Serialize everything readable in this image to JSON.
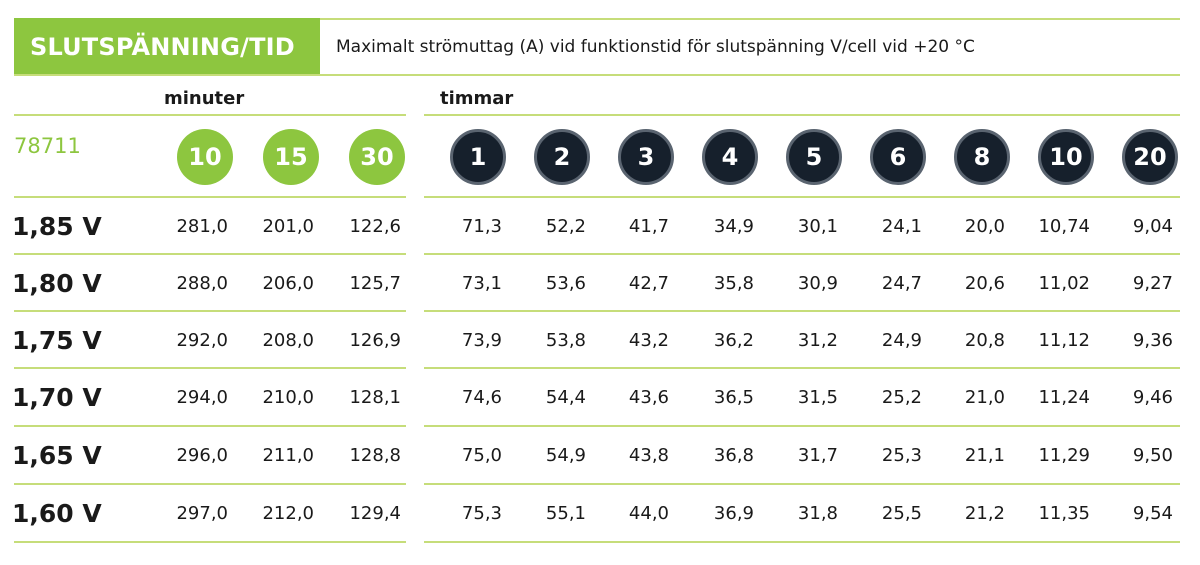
{
  "header": {
    "title": "SLUTSPÄNNING/TID",
    "description": "Maximalt strömuttag (A) vid funktionstid för slutspänning V/cell vid +20 °C"
  },
  "groups": {
    "minutes_label": "minuter",
    "hours_label": "timmar"
  },
  "model": "78711",
  "minute_columns": [
    "10",
    "15",
    "30"
  ],
  "hour_columns": [
    "1",
    "2",
    "3",
    "4",
    "5",
    "6",
    "8",
    "10",
    "20"
  ],
  "rows": [
    {
      "label": "1,85 V",
      "values": [
        "281,0",
        "201,0",
        "122,6",
        "71,3",
        "52,2",
        "41,7",
        "34,9",
        "30,1",
        "24,1",
        "20,0",
        "10,74",
        "9,04"
      ]
    },
    {
      "label": "1,80 V",
      "values": [
        "288,0",
        "206,0",
        "125,7",
        "73,1",
        "53,6",
        "42,7",
        "35,8",
        "30,9",
        "24,7",
        "20,6",
        "11,02",
        "9,27"
      ]
    },
    {
      "label": "1,75 V",
      "values": [
        "292,0",
        "208,0",
        "126,9",
        "73,9",
        "53,8",
        "43,2",
        "36,2",
        "31,2",
        "24,9",
        "20,8",
        "11,12",
        "9,36"
      ]
    },
    {
      "label": "1,70 V",
      "values": [
        "294,0",
        "210,0",
        "128,1",
        "74,6",
        "54,4",
        "43,6",
        "36,5",
        "31,5",
        "25,2",
        "21,0",
        "11,24",
        "9,46"
      ]
    },
    {
      "label": "1,65 V",
      "values": [
        "296,0",
        "211,0",
        "128,8",
        "75,0",
        "54,9",
        "43,8",
        "36,8",
        "31,7",
        "25,3",
        "21,1",
        "11,29",
        "9,50"
      ]
    },
    {
      "label": "1,60 V",
      "values": [
        "297,0",
        "212,0",
        "129,4",
        "75,3",
        "55,1",
        "44,0",
        "36,9",
        "31,8",
        "25,5",
        "21,2",
        "11,35",
        "9,54"
      ]
    }
  ],
  "colors": {
    "brand_green": "#8dc63f",
    "line_green": "#c6dd7a",
    "dark_circle": "#16202c"
  }
}
